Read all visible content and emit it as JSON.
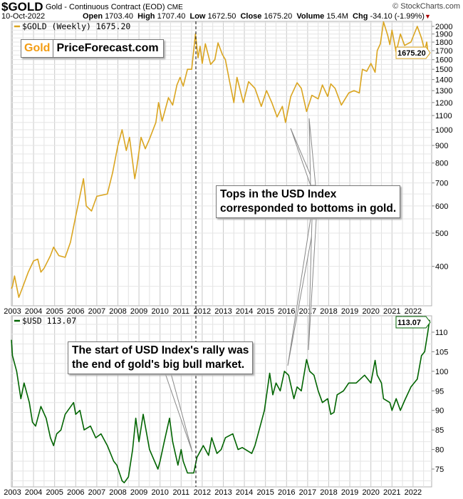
{
  "header": {
    "symbol": "$GOLD",
    "description": "Gold - Continuous Contract (EOD)",
    "exchange": "CME",
    "brand": "© StockCharts.com",
    "date": "10-Oct-2022",
    "open_label": "Open",
    "open": "1703.40",
    "high_label": "High",
    "high": "1707.40",
    "low_label": "Low",
    "low": "1672.50",
    "close_label": "Close",
    "close": "1675.20",
    "volume_label": "Volume",
    "volume": "15.4M",
    "chg_label": "Chg",
    "chg": "-34.10 (-1.99%)"
  },
  "logo": {
    "part1": "Gold",
    "part2": "PriceForecast.com"
  },
  "annotations": {
    "top": [
      "Tops in the USD Index",
      "corresponded to bottoms in gold."
    ],
    "bottom": [
      "The start of USD Index's rally was",
      "the end of gold's big bull market."
    ]
  },
  "colors": {
    "gold": "#DAA520",
    "usd": "#006400",
    "grid": "#d8d8d8",
    "marker_line": "#000000"
  },
  "chart_data": [
    {
      "type": "line",
      "legend": "$GOLD (Weekly) 1675.20",
      "last_value_label": "1675.20",
      "y_scale": "log",
      "ylim": [
        300,
        2100
      ],
      "y_ticks": [
        400,
        500,
        600,
        700,
        800,
        900,
        1000,
        1100,
        1200,
        1300,
        1400,
        1500,
        1600,
        1700,
        1800,
        1900,
        2000
      ],
      "y_tick_labels": [
        "400",
        "500",
        "600",
        "700",
        "800",
        "900",
        "1000",
        "1100",
        "1200",
        "1300",
        "1400",
        "1500",
        "1600",
        "1700",
        "1800",
        "1900",
        "2000"
      ],
      "x_tick_labels": [
        "2003",
        "2004",
        "2005",
        "2006",
        "2007",
        "2008",
        "2009",
        "2010",
        "2011",
        "2012",
        "2013",
        "2014",
        "2015",
        "2016",
        "2017",
        "2018",
        "2019",
        "2020",
        "2021",
        "2022"
      ],
      "grid": true,
      "x": [
        2002.95,
        2003.0,
        2003.1,
        2003.3,
        2003.5,
        2003.75,
        2004.0,
        2004.2,
        2004.35,
        2004.5,
        2004.8,
        2004.95,
        2005.2,
        2005.5,
        2005.75,
        2006.0,
        2006.37,
        2006.5,
        2006.75,
        2007.0,
        2007.5,
        2007.75,
        2008.0,
        2008.2,
        2008.4,
        2008.55,
        2008.8,
        2008.9,
        2009.1,
        2009.3,
        2009.5,
        2009.8,
        2009.93,
        2010.1,
        2010.4,
        2010.6,
        2010.8,
        2010.95,
        2011.1,
        2011.3,
        2011.5,
        2011.68,
        2011.8,
        2011.9,
        2012.0,
        2012.15,
        2012.4,
        2012.6,
        2012.75,
        2012.95,
        2013.1,
        2013.3,
        2013.5,
        2013.65,
        2013.95,
        2014.2,
        2014.5,
        2014.8,
        2015.05,
        2015.3,
        2015.55,
        2015.8,
        2015.95,
        2016.2,
        2016.5,
        2016.7,
        2016.95,
        2017.2,
        2017.5,
        2017.7,
        2017.95,
        2018.1,
        2018.3,
        2018.6,
        2018.95,
        2019.2,
        2019.45,
        2019.6,
        2019.8,
        2020.0,
        2020.2,
        2020.3,
        2020.45,
        2020.6,
        2020.8,
        2020.9,
        2021.0,
        2021.2,
        2021.4,
        2021.6,
        2021.9,
        2022.2,
        2022.4,
        2022.55,
        2022.65,
        2022.72,
        2022.78
      ],
      "values": [
        345,
        350,
        375,
        325,
        350,
        385,
        415,
        420,
        385,
        395,
        430,
        455,
        430,
        425,
        470,
        560,
        720,
        600,
        580,
        640,
        650,
        750,
        900,
        1000,
        870,
        950,
        720,
        780,
        950,
        880,
        940,
        1050,
        1200,
        1060,
        1240,
        1180,
        1350,
        1420,
        1340,
        1500,
        1500,
        1900,
        1620,
        1750,
        1560,
        1780,
        1550,
        1600,
        1790,
        1660,
        1600,
        1380,
        1200,
        1420,
        1200,
        1380,
        1320,
        1170,
        1300,
        1200,
        1090,
        1170,
        1050,
        1250,
        1370,
        1320,
        1130,
        1260,
        1230,
        1350,
        1250,
        1360,
        1320,
        1180,
        1280,
        1300,
        1280,
        1500,
        1480,
        1560,
        1470,
        1700,
        1780,
        2060,
        1880,
        1770,
        1950,
        1680,
        1900,
        1760,
        1800,
        2000,
        1850,
        1700,
        1800,
        1650,
        1675.2
      ]
    },
    {
      "type": "line",
      "legend": "$USD 113.07",
      "last_value_label": "113.07",
      "ylim": [
        71,
        114
      ],
      "y_ticks": [
        75,
        80,
        85,
        90,
        95,
        100,
        105,
        110
      ],
      "y_tick_labels": [
        "75",
        "80",
        "85",
        "90",
        "95",
        "100",
        "105",
        "110"
      ],
      "x_tick_labels": [
        "2003",
        "2004",
        "2005",
        "2006",
        "2007",
        "2008",
        "2009",
        "2010",
        "2011",
        "2012",
        "2013",
        "2014",
        "2015",
        "2016",
        "2017",
        "2018",
        "2019",
        "2020",
        "2021",
        "2022"
      ],
      "grid": true,
      "x": [
        2002.95,
        2003.0,
        2003.2,
        2003.4,
        2003.55,
        2003.8,
        2003.95,
        2004.1,
        2004.35,
        2004.6,
        2004.8,
        2004.95,
        2005.1,
        2005.3,
        2005.5,
        2005.9,
        2006.0,
        2006.2,
        2006.4,
        2006.7,
        2006.95,
        2007.2,
        2007.5,
        2007.8,
        2007.95,
        2008.2,
        2008.3,
        2008.5,
        2008.7,
        2008.85,
        2009.0,
        2009.2,
        2009.5,
        2009.9,
        2010.0,
        2010.2,
        2010.45,
        2010.6,
        2010.85,
        2011.0,
        2011.1,
        2011.3,
        2011.6,
        2011.75,
        2011.95,
        2012.05,
        2012.3,
        2012.45,
        2012.7,
        2012.9,
        2013.1,
        2013.45,
        2013.7,
        2013.9,
        2014.2,
        2014.35,
        2014.5,
        2014.75,
        2014.95,
        2015.2,
        2015.35,
        2015.5,
        2015.7,
        2015.9,
        2016.1,
        2016.35,
        2016.5,
        2016.7,
        2016.95,
        2017.1,
        2017.3,
        2017.5,
        2017.7,
        2017.95,
        2018.1,
        2018.25,
        2018.4,
        2018.7,
        2018.95,
        2019.3,
        2019.7,
        2020.0,
        2020.2,
        2020.3,
        2020.5,
        2020.6,
        2020.9,
        2021.0,
        2021.2,
        2021.4,
        2021.6,
        2021.9,
        2022.2,
        2022.4,
        2022.55,
        2022.7,
        2022.78
      ],
      "values": [
        108,
        104,
        100,
        93,
        97,
        92,
        87,
        86,
        91,
        88,
        83,
        81,
        84,
        85,
        89,
        92,
        89,
        90,
        85,
        86,
        83,
        84,
        81,
        77,
        76,
        72,
        71.5,
        73,
        80,
        88,
        82,
        89,
        80,
        75,
        77,
        82,
        88,
        82,
        76,
        80,
        77,
        74,
        74,
        78,
        80,
        81,
        78.5,
        83,
        79,
        80,
        83,
        84,
        80,
        80.5,
        79.5,
        79,
        81,
        86,
        90,
        99.5,
        94,
        97,
        95,
        100,
        99,
        93,
        96,
        95,
        103,
        100,
        99,
        95,
        92,
        93,
        89,
        89.5,
        94,
        95,
        97,
        97,
        99,
        97,
        102.8,
        99,
        97,
        93,
        92,
        90,
        93,
        90,
        92.5,
        96,
        98,
        104,
        105,
        110,
        113.07
      ]
    }
  ]
}
